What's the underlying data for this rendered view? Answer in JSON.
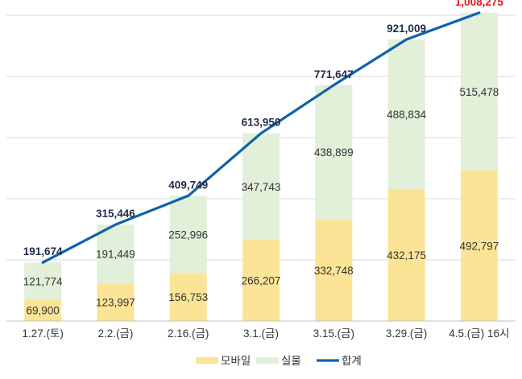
{
  "chart_data": {
    "type": "bar",
    "stacked": true,
    "categories": [
      "1.27.(토)",
      "2.2.(금)",
      "2.16.(금)",
      "3.1.(금)",
      "3.15.(금)",
      "3.29.(금)",
      "4.5.(금) 16시"
    ],
    "series": [
      {
        "name": "모바일",
        "type": "bar",
        "color": "#FCE497",
        "values": [
          69900,
          123997,
          156753,
          266207,
          332748,
          432175,
          492797
        ],
        "labels": [
          "69,900",
          "123,997",
          "156,753",
          "266,207",
          "332,748",
          "432,175",
          "492,797"
        ]
      },
      {
        "name": "실물",
        "type": "bar",
        "color": "#E2EFD9",
        "values": [
          121774,
          191449,
          252996,
          347743,
          438899,
          488834,
          515478
        ],
        "labels": [
          "121,774",
          "191,449",
          "252,996",
          "347,743",
          "438,899",
          "488,834",
          "515,478"
        ]
      },
      {
        "name": "합계",
        "type": "line",
        "color": "#0F62AC",
        "values": [
          191674,
          315446,
          409749,
          613950,
          771647,
          921009,
          1008275
        ],
        "labels": [
          "191,674",
          "315,446",
          "409,749",
          "613,950",
          "771,647",
          "921,009",
          "1,008,275"
        ]
      }
    ],
    "ylim": [
      0,
      1050000
    ],
    "grid": true,
    "legend": "bottom",
    "highlight_color": "#E8141B",
    "label_dark": "#1F2C4A",
    "label_body": "#333333"
  }
}
